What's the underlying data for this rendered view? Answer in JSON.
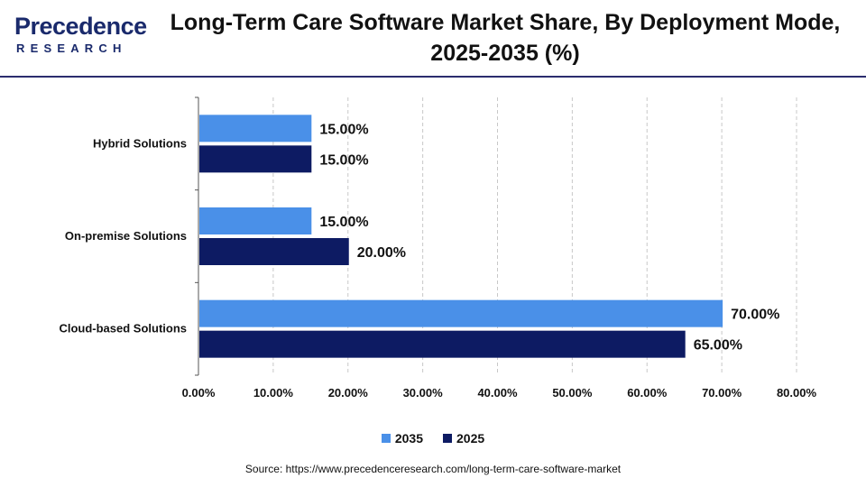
{
  "logo": {
    "main": "Precedence",
    "sub": "RESEARCH"
  },
  "chart_data": {
    "type": "bar",
    "orientation": "horizontal",
    "title": "Long-Term Care Software Market Share, By Deployment Mode, 2025-2035 (%)",
    "categories": [
      "Hybrid Solutions",
      "On-premise Solutions",
      "Cloud-based Solutions"
    ],
    "series": [
      {
        "name": "2035",
        "color": "#4a90e8",
        "values": [
          15.0,
          15.0,
          70.0
        ],
        "labels": [
          "15.00%",
          "15.00%",
          "70.00%"
        ]
      },
      {
        "name": "2025",
        "color": "#0d1b63",
        "values": [
          15.0,
          20.0,
          65.0
        ],
        "labels": [
          "15.00%",
          "20.00%",
          "65.00%"
        ]
      }
    ],
    "xlim": [
      0,
      80
    ],
    "xticks": [
      0,
      10,
      20,
      30,
      40,
      50,
      60,
      70,
      80
    ],
    "xtick_labels": [
      "0.00%",
      "10.00%",
      "20.00%",
      "30.00%",
      "40.00%",
      "50.00%",
      "60.00%",
      "70.00%",
      "80.00%"
    ],
    "grid": "vertical",
    "legend": "bottom"
  },
  "source": "Source: https://www.precedenceresearch.com/long-term-care-software-market"
}
